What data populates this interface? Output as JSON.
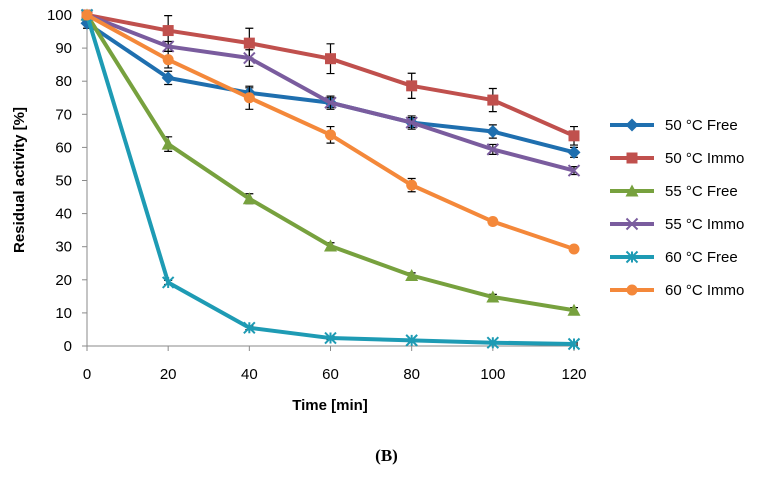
{
  "chart_data": {
    "type": "line",
    "title": "",
    "xlabel": "Time [min]",
    "ylabel": "Residual activity [%]",
    "xlim": [
      0,
      120
    ],
    "ylim": [
      0,
      100
    ],
    "xticks": [
      0,
      20,
      40,
      60,
      80,
      100,
      120
    ],
    "yticks": [
      0,
      10,
      20,
      30,
      40,
      50,
      60,
      70,
      80,
      90,
      100
    ],
    "x": [
      0,
      20,
      40,
      60,
      80,
      100,
      120
    ],
    "legend_position": "right",
    "series": [
      {
        "name": "50 °C Free",
        "color": "#1F6FAF",
        "marker": "diamond",
        "values": [
          97.5,
          81,
          76.5,
          73.5,
          67.5,
          64.8,
          58.5
        ],
        "errors": [
          1.5,
          2,
          1.5,
          1.5,
          1.5,
          2,
          1.5
        ]
      },
      {
        "name": "50 °C Immo",
        "color": "#C0504D",
        "marker": "square",
        "values": [
          100,
          95.3,
          91.5,
          86.8,
          78.6,
          74.3,
          63.5
        ],
        "errors": [
          0,
          4.5,
          4.5,
          4.5,
          3.8,
          3.5,
          2.8
        ]
      },
      {
        "name": "55 °C Free",
        "color": "#77A13E",
        "marker": "triangle",
        "values": [
          100,
          61,
          44.5,
          30.2,
          21.3,
          14.8,
          10.8
        ],
        "errors": [
          0,
          2.2,
          1.5,
          1,
          0.8,
          0.8,
          0.8
        ]
      },
      {
        "name": "55 °C Immo",
        "color": "#7A5C9E",
        "marker": "x",
        "values": [
          100,
          90.5,
          87,
          73.5,
          67.5,
          59.4,
          53
        ],
        "errors": [
          0,
          1.5,
          2.5,
          2,
          2,
          1.5,
          1.2
        ]
      },
      {
        "name": "60 °C Free",
        "color": "#1E9BB4",
        "marker": "asterisk",
        "values": [
          100,
          19.2,
          5.5,
          2.4,
          1.7,
          1.0,
          0.6
        ],
        "errors": [
          0,
          0.6,
          0.6,
          0.5,
          0.4,
          0.3,
          0.3
        ]
      },
      {
        "name": "60 °C Immo",
        "color": "#F4883A",
        "marker": "circle",
        "values": [
          100,
          86.5,
          75,
          63.8,
          48.6,
          37.6,
          29.3
        ],
        "errors": [
          0,
          2.5,
          3.5,
          2.5,
          2,
          1,
          0.8
        ]
      }
    ]
  },
  "panel_label": "(B)"
}
